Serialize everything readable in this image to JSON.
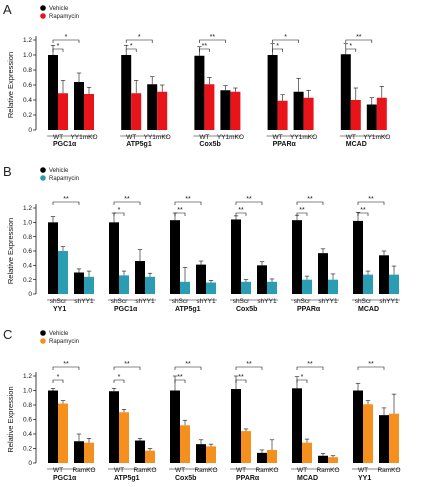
{
  "chart_data": [
    {
      "panel": "A",
      "type": "bar",
      "ylabel": "Relative Expression",
      "ylim": [
        0,
        1.2
      ],
      "yticks": [
        "0",
        "0.2",
        "0.4",
        "0.6",
        "0.8",
        "1.0",
        "1.2"
      ],
      "legend": [
        {
          "label": "Vehicle",
          "color": "#000000"
        },
        {
          "label": "Rapamycin",
          "color": "#e8141a"
        }
      ],
      "groups": [
        {
          "label": "PGC1α",
          "conditions": [
            "WT",
            "YY1mKO"
          ],
          "vehicle": [
            1.0,
            0.64
          ],
          "drug": [
            0.49,
            0.48
          ],
          "vehicle_err": [
            0.13,
            0.12
          ],
          "drug_err": [
            0.17,
            0.09
          ],
          "sig_short": "*",
          "sig_long": "*"
        },
        {
          "label": "ATP5g1",
          "conditions": [
            "WT",
            "YY1mKO"
          ],
          "vehicle": [
            1.0,
            0.61
          ],
          "drug": [
            0.49,
            0.51
          ],
          "vehicle_err": [
            0.13,
            0.1
          ],
          "drug_err": [
            0.17,
            0.09
          ],
          "sig_short": "*",
          "sig_long": "*"
        },
        {
          "label": "Cox5b",
          "conditions": [
            "WT",
            "YY1mKO"
          ],
          "vehicle": [
            0.99,
            0.53
          ],
          "drug": [
            0.61,
            0.51
          ],
          "vehicle_err": [
            0.12,
            0.06
          ],
          "drug_err": [
            0.09,
            0.05
          ],
          "sig_short": "**",
          "sig_long": "**"
        },
        {
          "label": "PPARα",
          "conditions": [
            "WT",
            "YY1mKO"
          ],
          "vehicle": [
            1.0,
            0.51
          ],
          "drug": [
            0.39,
            0.43
          ],
          "vehicle_err": [
            0.15,
            0.18
          ],
          "drug_err": [
            0.08,
            0.1
          ],
          "sig_short": "*",
          "sig_long": "*"
        },
        {
          "label": "MCAD",
          "conditions": [
            "WT",
            "YY1mKO"
          ],
          "vehicle": [
            1.01,
            0.34
          ],
          "drug": [
            0.4,
            0.43
          ],
          "vehicle_err": [
            0.14,
            0.09
          ],
          "drug_err": [
            0.16,
            0.15
          ],
          "sig_short": "*",
          "sig_long": "**"
        }
      ]
    },
    {
      "panel": "B",
      "type": "bar",
      "ylabel": "Relative Expression",
      "ylim": [
        0,
        1.2
      ],
      "yticks": [
        "0",
        "0.2",
        "0.4",
        "0.6",
        "0.8",
        "1.0",
        "1.2"
      ],
      "legend": [
        {
          "label": "Vehicle",
          "color": "#000000"
        },
        {
          "label": "Rapamycin",
          "color": "#2b9db3"
        }
      ],
      "groups": [
        {
          "label": "YY1",
          "conditions": [
            "shScr",
            "shYY1"
          ],
          "vehicle": [
            1.0,
            0.3
          ],
          "drug": [
            0.6,
            0.24
          ],
          "vehicle_err": [
            0.08,
            0.05
          ],
          "drug_err": [
            0.06,
            0.08
          ],
          "sig_short": "",
          "sig_long": "**"
        },
        {
          "label": "PGC1α",
          "conditions": [
            "shScr",
            "shYY1"
          ],
          "vehicle": [
            1.0,
            0.46
          ],
          "drug": [
            0.26,
            0.24
          ],
          "vehicle_err": [
            0.13,
            0.16
          ],
          "drug_err": [
            0.06,
            0.05
          ],
          "sig_short": "*",
          "sig_long": "**"
        },
        {
          "label": "ATP5g1",
          "conditions": [
            "shScr",
            "shYY1"
          ],
          "vehicle": [
            1.03,
            0.41
          ],
          "drug": [
            0.17,
            0.16
          ],
          "vehicle_err": [
            0.1,
            0.05
          ],
          "drug_err": [
            0.2,
            0.03
          ],
          "sig_short": "**",
          "sig_long": "**"
        },
        {
          "label": "Cox5b",
          "conditions": [
            "shScr",
            "shYY1"
          ],
          "vehicle": [
            1.04,
            0.4
          ],
          "drug": [
            0.17,
            0.17
          ],
          "vehicle_err": [
            0.05,
            0.05
          ],
          "drug_err": [
            0.03,
            0.04
          ],
          "sig_short": "**",
          "sig_long": "**"
        },
        {
          "label": "PPARα",
          "conditions": [
            "shScr",
            "shYY1"
          ],
          "vehicle": [
            1.03,
            0.57
          ],
          "drug": [
            0.2,
            0.2
          ],
          "vehicle_err": [
            0.07,
            0.06
          ],
          "drug_err": [
            0.05,
            0.08
          ],
          "sig_short": "**",
          "sig_long": "**"
        },
        {
          "label": "MCAD",
          "conditions": [
            "shScr",
            "shYY1"
          ],
          "vehicle": [
            1.02,
            0.54
          ],
          "drug": [
            0.27,
            0.27
          ],
          "vehicle_err": [
            0.12,
            0.06
          ],
          "drug_err": [
            0.05,
            0.12
          ],
          "sig_short": "**",
          "sig_long": "**"
        }
      ]
    },
    {
      "panel": "C",
      "type": "bar",
      "ylabel": "Relative Expression",
      "ylim": [
        0,
        1.2
      ],
      "yticks": [
        "0",
        "0.2",
        "0.4",
        "0.6",
        "0.8",
        "1.0",
        "1.2"
      ],
      "legend": [
        {
          "label": "Vehicle",
          "color": "#000000"
        },
        {
          "label": "Rapamycin",
          "color": "#f5901e"
        }
      ],
      "groups": [
        {
          "label": "PGC1α",
          "conditions": [
            "WT",
            "RamKO"
          ],
          "vehicle": [
            1.0,
            0.3
          ],
          "drug": [
            0.82,
            0.28
          ],
          "vehicle_err": [
            0.03,
            0.1
          ],
          "drug_err": [
            0.04,
            0.06
          ],
          "sig_short": "*",
          "sig_long": "**"
        },
        {
          "label": "ATP5g1",
          "conditions": [
            "WT",
            "RamKO"
          ],
          "vehicle": [
            0.99,
            0.31
          ],
          "drug": [
            0.7,
            0.17
          ],
          "vehicle_err": [
            0.04,
            0.03
          ],
          "drug_err": [
            0.04,
            0.03
          ],
          "sig_short": "*",
          "sig_long": "**"
        },
        {
          "label": "Cox5b",
          "conditions": [
            "WT",
            "RamKO"
          ],
          "vehicle": [
            1.0,
            0.26
          ],
          "drug": [
            0.52,
            0.23
          ],
          "vehicle_err": [
            0.2,
            0.06
          ],
          "drug_err": [
            0.07,
            0.03
          ],
          "sig_short": "**",
          "sig_long": "**"
        },
        {
          "label": "PPARα",
          "conditions": [
            "WT",
            "RamKO"
          ],
          "vehicle": [
            1.02,
            0.14
          ],
          "drug": [
            0.44,
            0.18
          ],
          "vehicle_err": [
            0.18,
            0.04
          ],
          "drug_err": [
            0.03,
            0.14
          ],
          "sig_short": "**",
          "sig_long": "**"
        },
        {
          "label": "MCAD",
          "conditions": [
            "WT",
            "RamKO"
          ],
          "vehicle": [
            1.03,
            0.1
          ],
          "drug": [
            0.28,
            0.08
          ],
          "vehicle_err": [
            0.16,
            0.03
          ],
          "drug_err": [
            0.05,
            0.02
          ],
          "sig_short": "*",
          "sig_long": "**"
        },
        {
          "label": "YY1",
          "conditions": [
            "WT",
            "RamKO"
          ],
          "vehicle": [
            1.0,
            0.66
          ],
          "drug": [
            0.81,
            0.68
          ],
          "vehicle_err": [
            0.1,
            0.1
          ],
          "drug_err": [
            0.05,
            0.27
          ],
          "sig_short": "",
          "sig_long": "**"
        }
      ]
    }
  ]
}
